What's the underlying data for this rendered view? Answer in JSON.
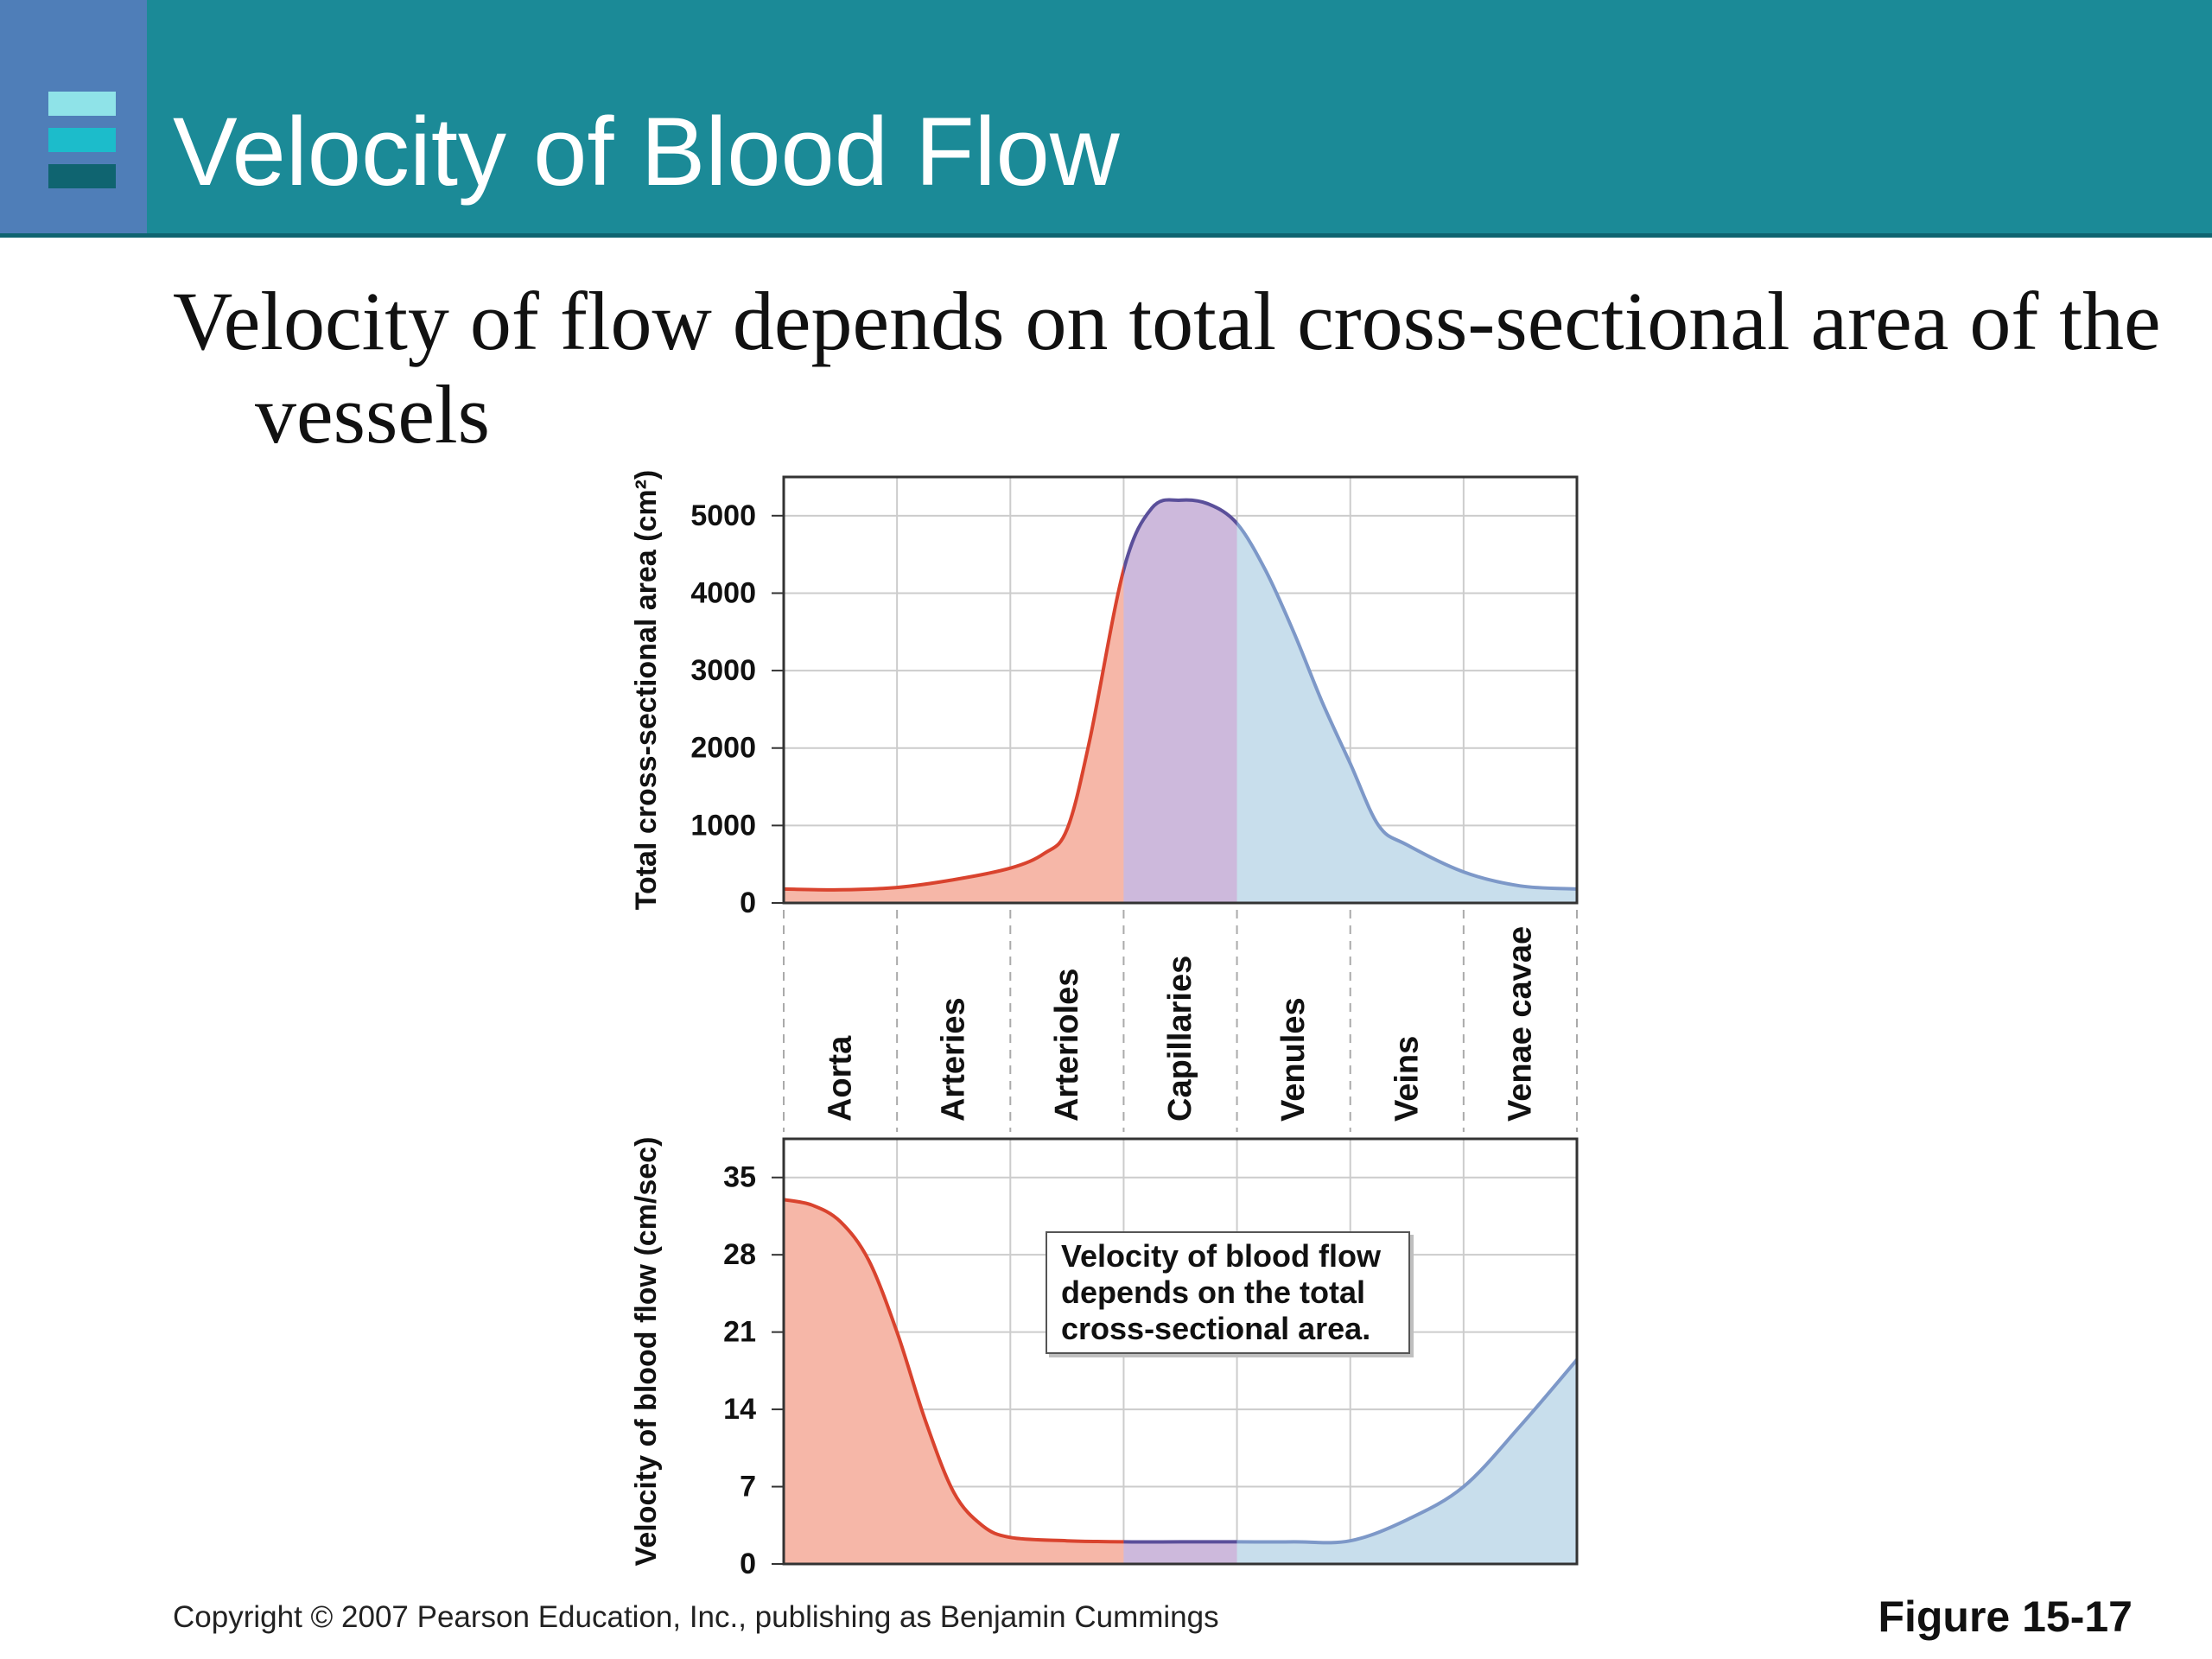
{
  "slide": {
    "title": "Velocity of Blood Flow",
    "subtitle": "Velocity of flow depends on total cross-sectional area of the vessels",
    "copyright": "Copyright © 2007 Pearson Education, Inc., publishing as Benjamin Cummings",
    "figure_label": "Figure 15-17"
  },
  "colors": {
    "header_bg": "#1b8a97",
    "header_accent": "#4f7eb8",
    "icon_bars": [
      "#8fe3e8",
      "#1cbccb",
      "#0f6470"
    ],
    "red_fill": "#f6b7a8",
    "red_line": "#d9432e",
    "purple_fill": "#cdb9dc",
    "purple_line": "#5a4f9a",
    "blue_fill": "#c8deec",
    "blue_line": "#7d98c8"
  },
  "chart_data": [
    {
      "type": "area",
      "title": "",
      "xlabel": "",
      "ylabel": "Total cross-sectional area (cm²)",
      "categories": [
        "Aorta",
        "Arteries",
        "Arterioles",
        "Capillaries",
        "Venules",
        "Veins",
        "Venae cavae"
      ],
      "ylim": [
        0,
        5500
      ],
      "yticks": [
        0,
        1000,
        2000,
        3000,
        4000,
        5000
      ],
      "grid": true,
      "x": [
        0,
        0.5,
        1,
        1.5,
        2,
        2.3,
        2.5,
        2.7,
        3,
        3.25,
        3.5,
        3.75,
        4,
        4.25,
        4.5,
        4.75,
        5,
        5.25,
        5.5,
        6,
        6.5,
        7
      ],
      "y": [
        180,
        170,
        200,
        300,
        450,
        640,
        950,
        2100,
        4300,
        5100,
        5200,
        5150,
        4900,
        4300,
        3500,
        2600,
        1800,
        1000,
        750,
        400,
        220,
        180
      ]
    },
    {
      "type": "area",
      "title": "",
      "xlabel": "",
      "ylabel": "Velocity of blood flow (cm/sec)",
      "categories": [
        "Aorta",
        "Arteries",
        "Arterioles",
        "Capillaries",
        "Venules",
        "Veins",
        "Venae cavae"
      ],
      "ylim": [
        0,
        38.5
      ],
      "yticks": [
        0,
        7,
        14,
        21,
        28,
        35
      ],
      "grid": true,
      "annotation": "Velocity of blood flow depends on the total cross-sectional area.",
      "x": [
        0,
        0.25,
        0.5,
        0.75,
        1,
        1.25,
        1.5,
        1.75,
        2,
        2.5,
        3,
        3.5,
        4,
        4.5,
        5,
        5.5,
        6,
        6.5,
        7
      ],
      "y": [
        33,
        32.5,
        31,
        27.5,
        21,
        13,
        6.5,
        3.5,
        2.4,
        2.1,
        2.0,
        2.0,
        2.0,
        2.0,
        2.1,
        4.0,
        7.0,
        12.5,
        18.5
      ]
    }
  ]
}
